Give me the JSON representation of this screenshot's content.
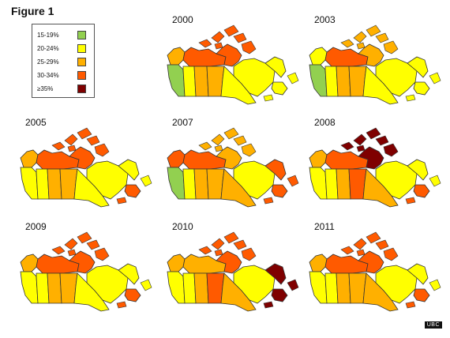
{
  "figure_title": "Figure 1",
  "legend": [
    {
      "label": "15-19%",
      "color": "#92d050"
    },
    {
      "label": "20-24%",
      "color": "#ffff00"
    },
    {
      "label": "25-29%",
      "color": "#ffb000"
    },
    {
      "label": "30-34%",
      "color": "#ff5a00"
    },
    {
      "label": "≥35%",
      "color": "#7f0000"
    }
  ],
  "maps": [
    {
      "year": "2000",
      "regions": {
        "bc": "#92d050",
        "ab": "#ffff00",
        "sk": "#ffb000",
        "mb": "#ffb000",
        "on": "#ffff00",
        "qc": "#ffff00",
        "yt": "#ffb000",
        "nt": "#ff5a00",
        "nu": "#ff5a00",
        "nl": "#ffff00",
        "mar": "#ffff00"
      }
    },
    {
      "year": "2003",
      "regions": {
        "bc": "#92d050",
        "ab": "#ffff00",
        "sk": "#ffb000",
        "mb": "#ffb000",
        "on": "#ffff00",
        "qc": "#ffff00",
        "yt": "#ffff00",
        "nt": "#ff5a00",
        "nu": "#ffb000",
        "nl": "#ffff00",
        "mar": "#ffff00"
      }
    },
    {
      "year": "2005",
      "regions": {
        "bc": "#ffff00",
        "ab": "#ffff00",
        "sk": "#ffb000",
        "mb": "#ffb000",
        "on": "#ffff00",
        "qc": "#ffff00",
        "yt": "#ffb000",
        "nt": "#ff5a00",
        "nu": "#ff5a00",
        "nl": "#ffff00",
        "mar": "#ff5a00"
      }
    },
    {
      "year": "2007",
      "regions": {
        "bc": "#92d050",
        "ab": "#ffff00",
        "sk": "#ffb000",
        "mb": "#ffb000",
        "on": "#ffb000",
        "qc": "#ffff00",
        "yt": "#ff5a00",
        "nt": "#ff5a00",
        "nu": "#ffb000",
        "nl": "#ff5a00",
        "mar": "#ff5a00"
      }
    },
    {
      "year": "2008",
      "regions": {
        "bc": "#ffff00",
        "ab": "#ffff00",
        "sk": "#ffb000",
        "mb": "#ff5a00",
        "on": "#ffb000",
        "qc": "#ffff00",
        "yt": "#ffb000",
        "nt": "#ff5a00",
        "nu": "#7f0000",
        "nl": "#ffff00",
        "mar": "#ff5a00"
      }
    },
    {
      "year": "2009",
      "regions": {
        "bc": "#ffff00",
        "ab": "#ffff00",
        "sk": "#ffb000",
        "mb": "#ffb000",
        "on": "#ffff00",
        "qc": "#ffff00",
        "yt": "#ffb000",
        "nt": "#ff5a00",
        "nu": "#ff5a00",
        "nl": "#ffff00",
        "mar": "#ff5a00"
      }
    },
    {
      "year": "2010",
      "regions": {
        "bc": "#ffff00",
        "ab": "#ffff00",
        "sk": "#ffb000",
        "mb": "#ff5a00",
        "on": "#ffb000",
        "qc": "#ffff00",
        "yt": "#ffb000",
        "nt": "#ffb000",
        "nu": "#ff5a00",
        "nl": "#7f0000",
        "mar": "#7f0000"
      }
    },
    {
      "year": "2011",
      "regions": {
        "bc": "#ffff00",
        "ab": "#ffff00",
        "sk": "#ffb000",
        "mb": "#ffb000",
        "on": "#ffb000",
        "qc": "#ffff00",
        "yt": "#ffb000",
        "nt": "#ff5a00",
        "nu": "#ff5a00",
        "nl": "#ffff00",
        "mar": "#ff5a00"
      }
    }
  ],
  "badge": "UBC"
}
